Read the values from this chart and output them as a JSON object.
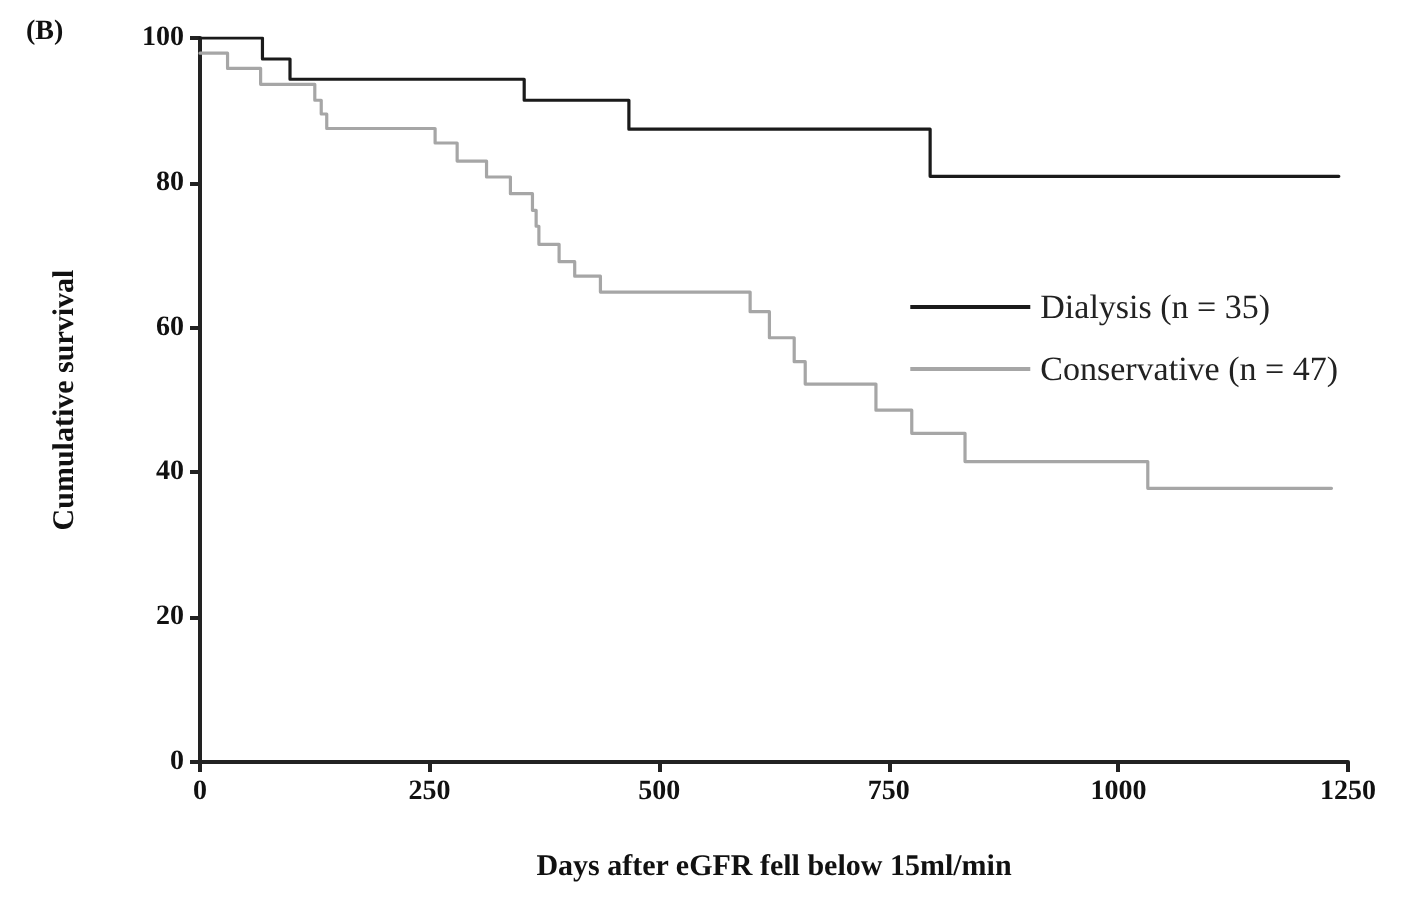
{
  "chart_data": {
    "type": "step",
    "title": "(B)",
    "xlabel": "Days after eGFR fell below 15ml/min",
    "ylabel": "Cumulative survival",
    "xlim": [
      0,
      1250
    ],
    "xticks": [
      0,
      250,
      500,
      750,
      1000,
      1250
    ],
    "ylim": [
      0,
      100
    ],
    "yticks": [
      0,
      20,
      40,
      60,
      80,
      100
    ],
    "grid": false,
    "legend": "right",
    "marker": "none",
    "line_style": "solid",
    "series": [
      {
        "name": "Dialysis (n = 35)",
        "color": "#1a1a1a",
        "x": [
          0,
          68,
          98,
          353,
          467,
          795,
          1240
        ],
        "values": [
          100,
          97.1,
          94.3,
          91.4,
          87.4,
          80.9,
          80.9
        ]
      },
      {
        "name": "Conservative (n = 47)",
        "color": "#a6a6a6",
        "x": [
          0,
          30,
          66,
          125,
          132,
          138,
          256,
          280,
          312,
          338,
          362,
          366,
          369,
          391,
          408,
          436,
          599,
          620,
          647,
          659,
          736,
          775,
          833,
          1032,
          1232
        ],
        "values": [
          97.9,
          95.8,
          93.6,
          91.4,
          89.5,
          87.5,
          85.5,
          83.0,
          80.8,
          78.5,
          76.2,
          74.0,
          71.5,
          69.1,
          67.1,
          64.9,
          62.2,
          58.6,
          55.3,
          52.2,
          48.6,
          45.4,
          41.5,
          37.8,
          37.8
        ]
      }
    ]
  }
}
